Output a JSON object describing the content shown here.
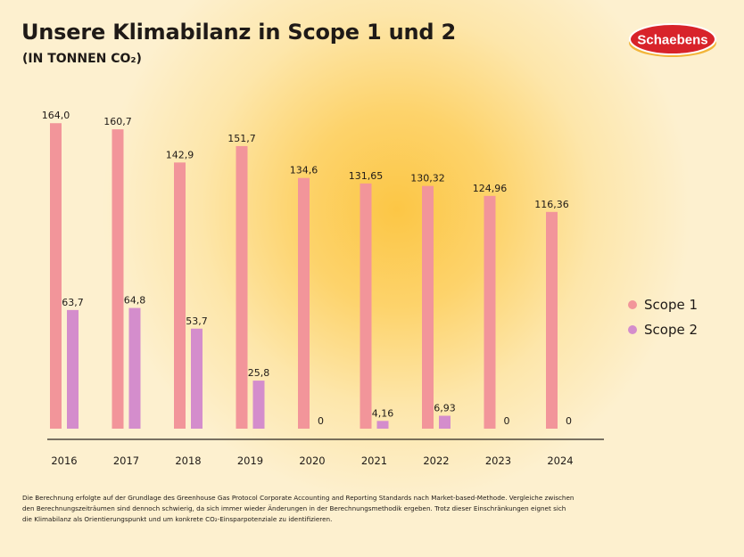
{
  "header": {
    "title": "Unsere Klimabilanz in Scope 1 und 2",
    "subtitle": "(IN TONNEN CO₂)"
  },
  "logo": {
    "text": "Schaebens",
    "colors": {
      "oval": "#d8232a",
      "text": "#ffffff",
      "swoosh": "#f2b53a"
    }
  },
  "colors": {
    "scope1": "#f2959a",
    "scope2": "#d48dcc",
    "axis": "#2a2420",
    "text": "#1f1a17"
  },
  "chart_data": {
    "type": "bar",
    "title": "Unsere Klimabilanz in Scope 1 und 2",
    "subtitle": "(IN TONNEN CO₂)",
    "categories": [
      "2016",
      "2017",
      "2018",
      "2019",
      "2020",
      "2021",
      "2022",
      "2023",
      "2024"
    ],
    "series": [
      {
        "name": "Scope 1",
        "values": [
          164.0,
          160.7,
          142.9,
          151.7,
          134.6,
          131.65,
          130.32,
          124.96,
          116.36
        ],
        "labels": [
          "164,0",
          "160,7",
          "142,9",
          "151,7",
          "134,6",
          "131,65",
          "130,32",
          "124,96",
          "116,36"
        ]
      },
      {
        "name": "Scope 2",
        "values": [
          63.7,
          64.8,
          53.7,
          25.8,
          0,
          4.16,
          6.93,
          0,
          0
        ],
        "labels": [
          "63,7",
          "64,8",
          "53,7",
          "25,8",
          "0",
          "4,16",
          "6,93",
          "0",
          "0"
        ]
      }
    ],
    "ylim": [
      0,
      180
    ],
    "grid": false,
    "legend_position": "right"
  },
  "legend": [
    {
      "label": "Scope 1"
    },
    {
      "label": "Scope 2"
    }
  ],
  "footnote": "Die Berechnung erfolgte auf der Grundlage des Greenhouse Gas Protocol Corporate Accounting and Reporting Standards nach Market-based-Methode. Vergleiche zwischen den Berechnungszeiträumen sind dennoch schwierig, da sich immer wieder Änderungen in der Berechnungsmethodik ergeben. Trotz dieser Einschränkungen eignet sich die Klimabilanz als Orientierungspunkt und um konkrete CO₂-Einsparpotenziale zu identifizieren."
}
